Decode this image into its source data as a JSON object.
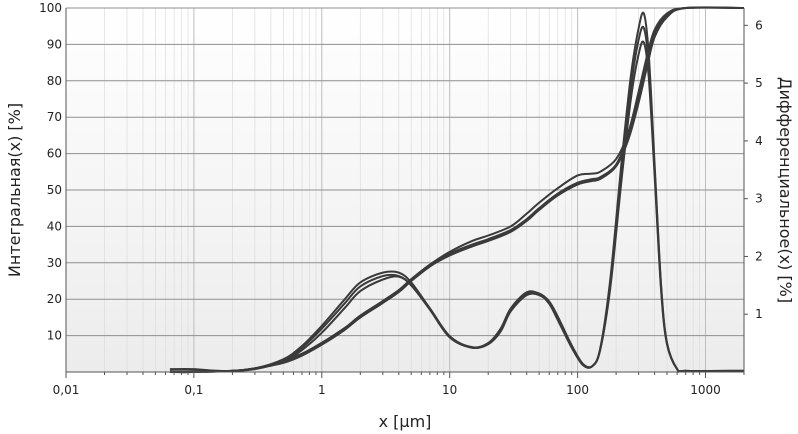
{
  "chart_data": {
    "type": "line",
    "xlabel": "x [µm]",
    "ylabel": "Интегральная(x) [%]",
    "y2label": "Дифференциальное(x) [%]",
    "xscale": "log",
    "xlim": [
      0.01,
      2000
    ],
    "ylim": [
      0,
      100
    ],
    "y2lim": [
      0,
      6.3
    ],
    "x_ticks": [
      0.01,
      0.1,
      1,
      10,
      100,
      1000
    ],
    "x_tick_labels": [
      "0,01",
      "0,1",
      "1",
      "10",
      "100",
      "1000"
    ],
    "y_ticks": [
      10,
      20,
      30,
      40,
      50,
      60,
      70,
      80,
      90,
      100
    ],
    "y_tick_labels": [
      "10",
      "20",
      "30",
      "40",
      "50",
      "60",
      "70",
      "80",
      "90",
      "100"
    ],
    "y2_ticks": [
      1,
      2,
      3,
      4,
      5,
      6
    ],
    "y2_tick_labels": [
      "1",
      "2",
      "3",
      "4",
      "5",
      "6"
    ],
    "grid": true,
    "line_color": "#3a3a3a",
    "series": [
      {
        "axis": "left",
        "x": [
          0.065,
          0.1,
          0.2,
          0.3,
          0.5,
          0.7,
          1,
          1.5,
          2,
          3,
          4,
          5,
          7,
          10,
          15,
          20,
          30,
          40,
          50,
          70,
          100,
          130,
          150,
          200,
          250,
          300,
          350,
          400,
          500,
          700,
          2000
        ],
        "y": [
          0,
          0,
          0.3,
          1,
          3,
          5,
          8,
          12,
          15,
          19,
          22,
          25,
          29,
          32.5,
          35,
          36.5,
          39,
          42,
          45,
          49,
          52,
          53,
          53.5,
          57,
          65,
          75,
          85,
          93,
          98,
          100,
          100
        ]
      },
      {
        "axis": "left",
        "x": [
          0.065,
          0.1,
          0.2,
          0.3,
          0.5,
          0.7,
          1,
          1.5,
          2,
          3,
          4,
          5,
          7,
          10,
          15,
          20,
          30,
          40,
          50,
          70,
          100,
          130,
          150,
          200,
          250,
          300,
          350,
          400,
          500,
          700,
          2000
        ],
        "y": [
          0,
          0,
          0.3,
          1,
          3,
          5,
          8,
          12,
          15.5,
          19.5,
          22.5,
          25.5,
          29.5,
          33,
          36,
          37.5,
          40,
          43.5,
          46.5,
          50.5,
          54,
          54.5,
          55,
          58.5,
          66,
          77,
          87,
          94,
          98.5,
          100,
          100
        ]
      },
      {
        "axis": "left",
        "x": [
          0.065,
          0.1,
          0.2,
          0.3,
          0.5,
          0.7,
          1,
          1.5,
          2,
          3,
          4,
          5,
          7,
          10,
          15,
          20,
          30,
          40,
          50,
          70,
          100,
          130,
          150,
          200,
          250,
          300,
          350,
          400,
          500,
          700,
          2000
        ],
        "y": [
          0,
          0,
          0.3,
          1,
          2.5,
          4.5,
          7.5,
          11.5,
          15,
          19,
          22,
          25,
          29,
          32,
          34.5,
          36,
          38.5,
          41.5,
          44.5,
          48.5,
          51.5,
          52.5,
          53,
          56.5,
          64,
          74,
          84,
          92,
          97.5,
          100,
          100
        ]
      },
      {
        "axis": "right",
        "x": [
          0.065,
          0.1,
          0.15,
          0.2,
          0.3,
          0.5,
          0.7,
          1,
          1.5,
          2,
          3,
          4,
          5,
          7,
          10,
          15,
          20,
          25,
          30,
          40,
          50,
          60,
          70,
          90,
          110,
          130,
          150,
          180,
          220,
          260,
          300,
          330,
          360,
          400,
          450,
          500,
          600,
          700,
          2000
        ],
        "y": [
          0.05,
          0.05,
          0.02,
          0.02,
          0.06,
          0.22,
          0.45,
          0.8,
          1.25,
          1.55,
          1.72,
          1.72,
          1.55,
          1.1,
          0.62,
          0.42,
          0.5,
          0.75,
          1.1,
          1.38,
          1.35,
          1.18,
          0.9,
          0.42,
          0.12,
          0.1,
          0.4,
          1.6,
          3.6,
          5.1,
          5.95,
          6.2,
          5.5,
          3.6,
          1.5,
          0.5,
          0.05,
          0.02,
          0.02
        ]
      },
      {
        "axis": "right",
        "x": [
          0.065,
          0.1,
          0.15,
          0.2,
          0.3,
          0.5,
          0.7,
          1,
          1.5,
          2,
          3,
          4,
          5,
          7,
          10,
          15,
          20,
          25,
          30,
          40,
          50,
          60,
          70,
          90,
          110,
          130,
          150,
          180,
          220,
          260,
          300,
          330,
          360,
          400,
          450,
          500,
          600,
          700,
          2000
        ],
        "y": [
          0.04,
          0.04,
          0.02,
          0.02,
          0.06,
          0.2,
          0.42,
          0.75,
          1.18,
          1.48,
          1.66,
          1.66,
          1.5,
          1.08,
          0.6,
          0.42,
          0.48,
          0.7,
          1.05,
          1.33,
          1.33,
          1.2,
          0.95,
          0.45,
          0.14,
          0.1,
          0.38,
          1.5,
          3.4,
          4.9,
          5.75,
          5.95,
          5.3,
          3.5,
          1.45,
          0.5,
          0.05,
          0.02,
          0.02
        ]
      },
      {
        "axis": "right",
        "x": [
          0.065,
          0.1,
          0.15,
          0.2,
          0.3,
          0.5,
          0.7,
          1,
          1.5,
          2,
          3,
          4,
          5,
          7,
          10,
          15,
          20,
          25,
          30,
          40,
          50,
          60,
          70,
          90,
          110,
          130,
          150,
          180,
          220,
          260,
          300,
          330,
          360,
          400,
          450,
          500,
          600,
          700,
          2000
        ],
        "y": [
          0.04,
          0.04,
          0.02,
          0.02,
          0.05,
          0.18,
          0.38,
          0.68,
          1.1,
          1.4,
          1.6,
          1.65,
          1.5,
          1.1,
          0.62,
          0.43,
          0.5,
          0.72,
          1.08,
          1.36,
          1.36,
          1.22,
          0.96,
          0.46,
          0.14,
          0.1,
          0.38,
          1.45,
          3.3,
          4.7,
          5.5,
          5.7,
          5.1,
          3.4,
          1.4,
          0.48,
          0.05,
          0.02,
          0.02
        ]
      }
    ]
  }
}
